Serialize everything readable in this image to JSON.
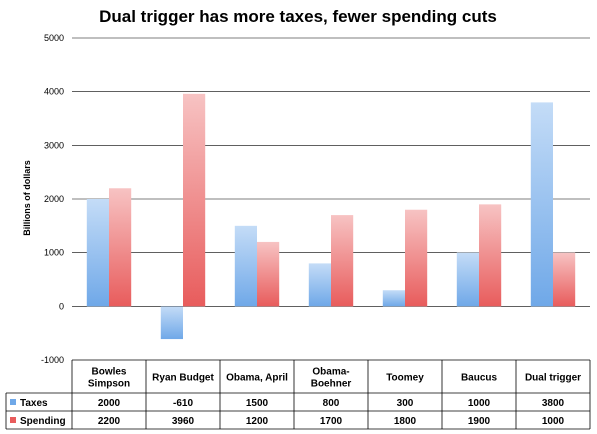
{
  "colors": {
    "taxes": "#6fa8e8",
    "taxes_light": "#c4dcf7",
    "spending": "#e85c5c",
    "spending_light": "#f7c3c3",
    "grid": "#000000"
  },
  "chart_data": {
    "type": "bar",
    "title": "Dual trigger has more taxes, fewer spending cuts",
    "ylabel": "Billions of dollars",
    "xlabel": "",
    "ylim": [
      -1000,
      5000
    ],
    "yticks": [
      -1000,
      0,
      1000,
      2000,
      3000,
      4000,
      5000
    ],
    "grid": true,
    "legend": "data-table",
    "categories": [
      [
        "Bowles",
        "Simpson"
      ],
      [
        "Ryan Budget"
      ],
      [
        "Obama, April"
      ],
      [
        "Obama-",
        "Boehner"
      ],
      [
        "Toomey"
      ],
      [
        "Baucus"
      ],
      [
        "Dual trigger"
      ]
    ],
    "series": [
      {
        "name": "Taxes",
        "values": [
          2000,
          -610,
          1500,
          800,
          300,
          1000,
          3800
        ]
      },
      {
        "name": "Spending",
        "values": [
          2200,
          3960,
          1200,
          1700,
          1800,
          1900,
          1000
        ]
      }
    ]
  }
}
